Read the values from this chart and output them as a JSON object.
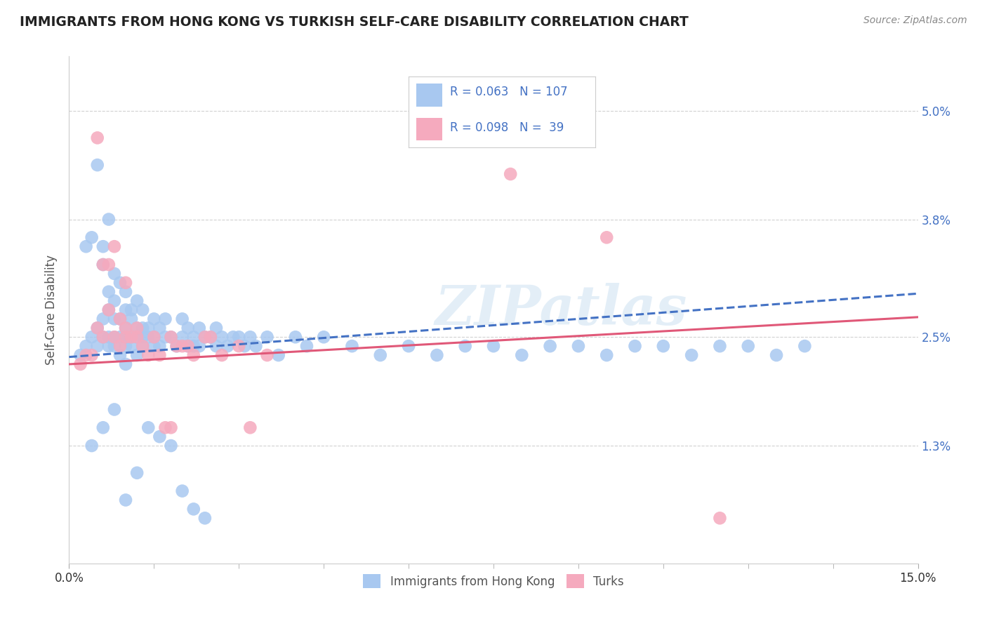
{
  "title": "IMMIGRANTS FROM HONG KONG VS TURKISH SELF-CARE DISABILITY CORRELATION CHART",
  "source": "Source: ZipAtlas.com",
  "ylabel": "Self-Care Disability",
  "ytick_labels": [
    "5.0%",
    "3.8%",
    "2.5%",
    "1.3%"
  ],
  "ytick_values": [
    5.0,
    3.8,
    2.5,
    1.3
  ],
  "xlim": [
    0.0,
    15.0
  ],
  "ylim": [
    0.0,
    5.6
  ],
  "blue_color": "#A8C8F0",
  "pink_color": "#F5AABE",
  "blue_line_color": "#4472C4",
  "pink_line_color": "#E05878",
  "legend_r_blue": "0.063",
  "legend_n_blue": "107",
  "legend_r_pink": "0.098",
  "legend_n_pink": "39",
  "legend_label_blue": "Immigrants from Hong Kong",
  "legend_label_pink": "Turks",
  "watermark": "ZIPatlas",
  "blue_trend_x": [
    0.0,
    15.0
  ],
  "blue_trend_y_start": 2.28,
  "blue_trend_y_end": 2.98,
  "pink_trend_x": [
    0.0,
    15.0
  ],
  "pink_trend_y_start": 2.2,
  "pink_trend_y_end": 2.72,
  "blue_points_x": [
    0.2,
    0.3,
    0.3,
    0.4,
    0.4,
    0.5,
    0.5,
    0.5,
    0.6,
    0.6,
    0.6,
    0.6,
    0.7,
    0.7,
    0.7,
    0.7,
    0.7,
    0.8,
    0.8,
    0.8,
    0.8,
    0.8,
    0.9,
    0.9,
    0.9,
    0.9,
    1.0,
    1.0,
    1.0,
    1.0,
    1.0,
    1.0,
    1.1,
    1.1,
    1.1,
    1.1,
    1.2,
    1.2,
    1.2,
    1.2,
    1.3,
    1.3,
    1.3,
    1.3,
    1.4,
    1.4,
    1.5,
    1.5,
    1.5,
    1.6,
    1.6,
    1.7,
    1.7,
    1.8,
    1.9,
    2.0,
    2.0,
    2.1,
    2.1,
    2.2,
    2.2,
    2.3,
    2.3,
    2.4,
    2.5,
    2.6,
    2.6,
    2.7,
    2.8,
    2.9,
    3.0,
    3.1,
    3.2,
    3.3,
    3.5,
    3.7,
    4.0,
    4.2,
    4.5,
    5.0,
    5.5,
    6.0,
    6.5,
    7.0,
    7.5,
    8.0,
    8.5,
    9.0,
    9.5,
    10.0,
    10.5,
    11.0,
    11.5,
    12.0,
    12.5,
    13.0,
    0.4,
    0.6,
    0.8,
    1.0,
    1.2,
    1.4,
    1.6,
    1.8,
    2.0,
    2.2,
    2.4
  ],
  "blue_points_y": [
    2.3,
    2.4,
    3.5,
    2.5,
    3.6,
    2.4,
    2.6,
    4.4,
    2.5,
    2.7,
    3.3,
    3.5,
    2.4,
    2.5,
    2.8,
    3.0,
    3.8,
    2.4,
    2.5,
    2.7,
    2.9,
    3.2,
    2.3,
    2.5,
    2.7,
    3.1,
    2.2,
    2.4,
    2.5,
    2.6,
    2.8,
    3.0,
    2.4,
    2.5,
    2.7,
    2.8,
    2.3,
    2.5,
    2.6,
    2.9,
    2.4,
    2.5,
    2.6,
    2.8,
    2.5,
    2.6,
    2.4,
    2.5,
    2.7,
    2.4,
    2.6,
    2.5,
    2.7,
    2.5,
    2.4,
    2.5,
    2.7,
    2.4,
    2.6,
    2.4,
    2.5,
    2.4,
    2.6,
    2.5,
    2.5,
    2.4,
    2.6,
    2.5,
    2.4,
    2.5,
    2.5,
    2.4,
    2.5,
    2.4,
    2.5,
    2.3,
    2.5,
    2.4,
    2.5,
    2.4,
    2.3,
    2.4,
    2.3,
    2.4,
    2.4,
    2.3,
    2.4,
    2.4,
    2.3,
    2.4,
    2.4,
    2.3,
    2.4,
    2.4,
    2.3,
    2.4,
    1.3,
    1.5,
    1.7,
    0.7,
    1.0,
    1.5,
    1.4,
    1.3,
    0.8,
    0.6,
    0.5
  ],
  "pink_points_x": [
    0.2,
    0.3,
    0.4,
    0.5,
    0.5,
    0.6,
    0.6,
    0.7,
    0.7,
    0.8,
    0.8,
    0.9,
    0.9,
    1.0,
    1.0,
    1.0,
    1.1,
    1.2,
    1.2,
    1.3,
    1.4,
    1.5,
    1.6,
    1.7,
    1.8,
    1.8,
    1.9,
    2.0,
    2.1,
    2.2,
    2.4,
    2.5,
    2.7,
    3.0,
    3.2,
    3.5,
    7.8,
    9.5,
    11.5
  ],
  "pink_points_y": [
    2.2,
    2.3,
    2.3,
    2.6,
    4.7,
    2.5,
    3.3,
    2.8,
    3.3,
    2.5,
    3.5,
    2.4,
    2.7,
    2.5,
    2.6,
    3.1,
    2.5,
    2.5,
    2.6,
    2.4,
    2.3,
    2.5,
    2.3,
    1.5,
    1.5,
    2.5,
    2.4,
    2.4,
    2.4,
    2.3,
    2.5,
    2.5,
    2.3,
    2.4,
    1.5,
    2.3,
    4.3,
    3.6,
    0.5
  ]
}
